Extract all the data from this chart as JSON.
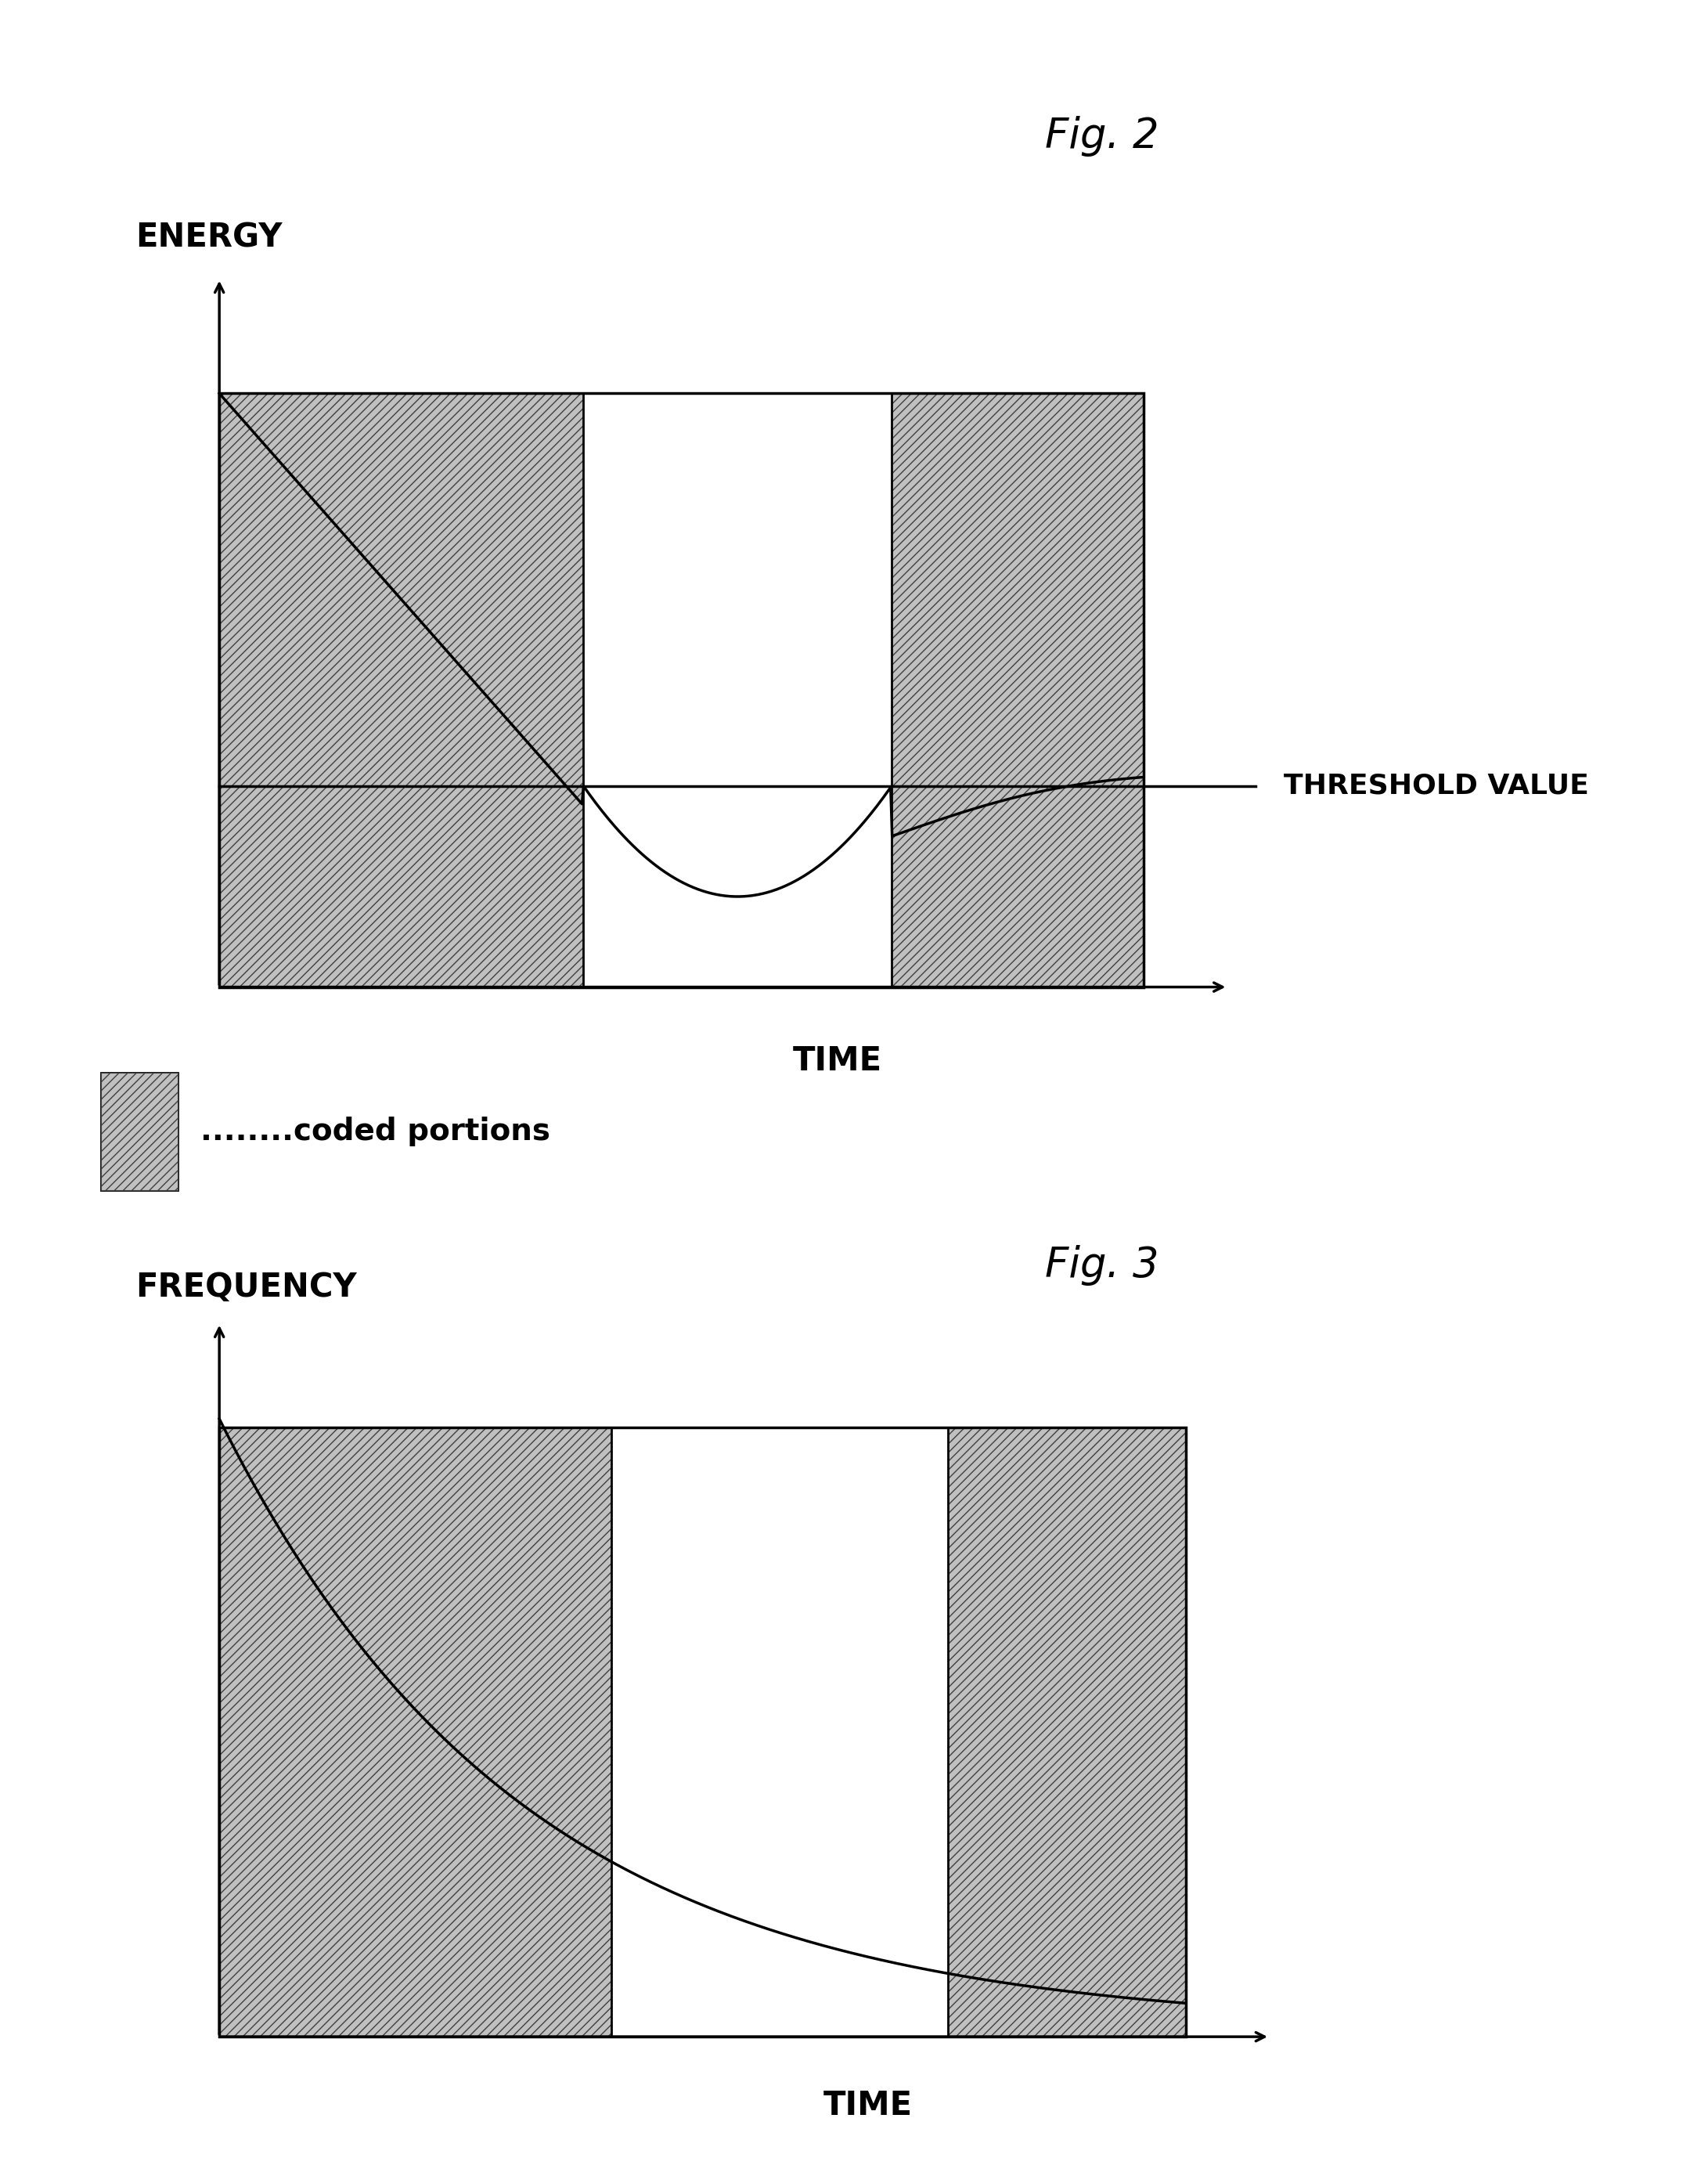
{
  "fig2_title": "Fig. 2",
  "fig3_title": "Fig. 3",
  "fig2_ylabel": "ENERGY",
  "fig2_xlabel": "TIME",
  "fig3_ylabel": "FREQUENCY",
  "fig3_xlabel": "TIME",
  "threshold_label": "THRESHOLD VALUE",
  "legend_label": "........coded portions",
  "bg_color": "#ffffff",
  "hatch_pattern": "///",
  "line_color": "#000000",
  "title_fontsize": 38,
  "axis_label_fontsize": 30,
  "threshold_fontsize": 26,
  "legend_fontsize": 28
}
